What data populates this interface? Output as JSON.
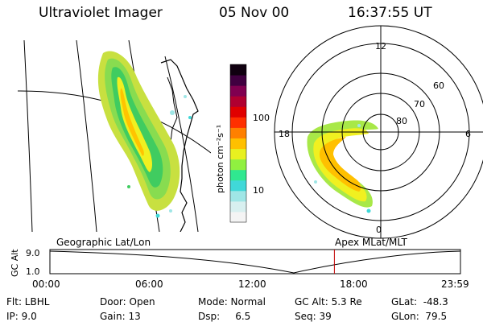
{
  "header": {
    "instrument": "Ultraviolet Imager",
    "date": "05 Nov 00",
    "time": "16:37:55 UT"
  },
  "colorbar": {
    "label": "photon cm⁻²s⁻¹",
    "ticks": [
      "100",
      "10"
    ],
    "colors": [
      "#f4f4f4",
      "#d8f0f0",
      "#9fe6e6",
      "#40d8d8",
      "#30e890",
      "#90f040",
      "#e8f020",
      "#ffc000",
      "#ff8000",
      "#ff3000",
      "#e00000",
      "#b00030",
      "#800050",
      "#400040",
      "#100010"
    ]
  },
  "polar_plot": {
    "mlt_labels": [
      "12",
      "18",
      "6",
      "0"
    ],
    "lat_labels": [
      "60",
      "70",
      "80"
    ]
  },
  "timeline": {
    "left_title": "Geographic Lat/Lon",
    "right_title": "Apex MLat/MLT",
    "ylabel": "GC Alt",
    "yticks": [
      "9.0",
      "1.0"
    ],
    "xticks": [
      "00:00",
      "06:00",
      "12:00",
      "18:00",
      "23:59"
    ],
    "current_time_marker_hours": 16.63
  },
  "info": {
    "flt": "Flt: LBHL",
    "ip": "IP:  9.0",
    "door": "Door: Open",
    "gain": "Gain: 13",
    "mode": "Mode: Normal",
    "dsp": "Dsp:     6.5",
    "gcalt": "GC Alt: 5.3 Re",
    "seq": "Seq: 39",
    "glat": "GLat:  -48.3",
    "glon": "GLon:  79.5"
  }
}
